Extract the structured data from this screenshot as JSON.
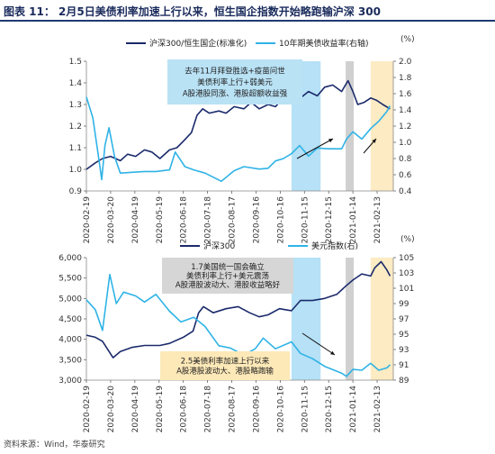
{
  "figure": {
    "title": "图表 11：  2月5日美债利率加速上行以来，恒生国企指数开始略跑输沪深 300",
    "source": "资料来源：Wind，华泰研究"
  },
  "colors": {
    "navy": "#1b2a6b",
    "cyan": "#2fb3e6",
    "cyan_band": "#a9dcf4",
    "grey_band": "#c8c8c8",
    "yellow_band": "#fbe8b8",
    "annot_blue_bg": "#b9e2f5",
    "annot_grey_bg": "#d6d6d6",
    "annot_yellow_bg": "#fde9b8"
  },
  "chart_data": [
    {
      "type": "line",
      "title": "",
      "x_ticks": [
        "2020-02-19",
        "2020-03-20",
        "2020-04-19",
        "2020-05-19",
        "2020-06-18",
        "2020-07-18",
        "2020-08-17",
        "2020-09-16",
        "2020-10-16",
        "2020-11-15",
        "2020-12-15",
        "2021-01-14",
        "2021-02-13"
      ],
      "x_range": [
        "2020-02-19",
        "2021-03-05"
      ],
      "y_left": {
        "range": [
          0.9,
          1.5
        ],
        "ticks": [
          "0.9",
          "1.0",
          "1.1",
          "1.2",
          "1.3",
          "1.4",
          "1.5"
        ]
      },
      "y_right": {
        "range": [
          0.4,
          2.0
        ],
        "ticks": [
          "0.4",
          "0.6",
          "0.8",
          "1.0",
          "1.2",
          "1.4",
          "1.6",
          "1.8",
          "2.0"
        ],
        "unit": "(%)"
      },
      "legend": {
        "placement": "top",
        "entries": [
          "沪深300/恒生国企(标准化)",
          "10年期美债收益率(右轴)"
        ]
      },
      "bands": [
        {
          "from": "2020-10-30",
          "to": "2020-12-05",
          "color": "cyan"
        },
        {
          "from": "2021-01-05",
          "to": "2021-01-15",
          "color": "grey"
        },
        {
          "from": "2021-02-05",
          "to": "2021-03-05",
          "color": "yellow"
        }
      ],
      "annotations": [
        {
          "lines": [
            "去年11月拜登胜选+疫苗问世",
            "美债利率上行+弱美元",
            "A股港股同涨、港股超额收益强"
          ],
          "style": "blue"
        }
      ],
      "series": [
        {
          "name": "沪深300/恒生国企(标准化)",
          "axis": "left",
          "color": "navy",
          "x": [
            "2020-02-19",
            "2020-03-01",
            "2020-03-10",
            "2020-03-20",
            "2020-04-01",
            "2020-04-10",
            "2020-04-20",
            "2020-05-01",
            "2020-05-10",
            "2020-05-20",
            "2020-06-01",
            "2020-06-10",
            "2020-06-18",
            "2020-06-28",
            "2020-07-05",
            "2020-07-12",
            "2020-07-20",
            "2020-08-01",
            "2020-08-10",
            "2020-08-20",
            "2020-09-01",
            "2020-09-10",
            "2020-09-20",
            "2020-10-01",
            "2020-10-10",
            "2020-10-20",
            "2020-10-30",
            "2020-11-10",
            "2020-11-20",
            "2020-12-01",
            "2020-12-10",
            "2020-12-20",
            "2020-12-31",
            "2021-01-08",
            "2021-01-14",
            "2021-01-20",
            "2021-01-28",
            "2021-02-05",
            "2021-02-12",
            "2021-02-20",
            "2021-03-01"
          ],
          "values": [
            1.0,
            1.03,
            1.05,
            1.06,
            1.04,
            1.07,
            1.06,
            1.09,
            1.08,
            1.05,
            1.09,
            1.1,
            1.13,
            1.17,
            1.25,
            1.28,
            1.26,
            1.27,
            1.26,
            1.29,
            1.28,
            1.31,
            1.28,
            1.3,
            1.29,
            1.33,
            1.34,
            1.33,
            1.36,
            1.34,
            1.38,
            1.39,
            1.36,
            1.41,
            1.36,
            1.3,
            1.31,
            1.33,
            1.32,
            1.3,
            1.28
          ]
        },
        {
          "name": "10年期美债收益率(右轴)",
          "axis": "right",
          "color": "cyan",
          "x": [
            "2020-02-19",
            "2020-02-27",
            "2020-03-06",
            "2020-03-09",
            "2020-03-13",
            "2020-03-18",
            "2020-03-25",
            "2020-04-01",
            "2020-04-15",
            "2020-05-01",
            "2020-05-15",
            "2020-06-01",
            "2020-06-08",
            "2020-06-20",
            "2020-07-01",
            "2020-07-15",
            "2020-08-04",
            "2020-08-20",
            "2020-09-01",
            "2020-09-20",
            "2020-10-01",
            "2020-10-10",
            "2020-10-20",
            "2020-10-30",
            "2020-11-09",
            "2020-11-20",
            "2020-12-01",
            "2020-12-15",
            "2020-12-31",
            "2021-01-06",
            "2021-01-14",
            "2021-01-25",
            "2021-02-05",
            "2021-02-15",
            "2021-02-25",
            "2021-03-01"
          ],
          "values": [
            1.56,
            1.3,
            0.75,
            0.54,
            0.96,
            1.18,
            0.82,
            0.62,
            0.63,
            0.64,
            0.64,
            0.66,
            0.88,
            0.7,
            0.66,
            0.62,
            0.52,
            0.65,
            0.7,
            0.67,
            0.68,
            0.77,
            0.8,
            0.86,
            0.96,
            0.83,
            0.93,
            0.92,
            0.92,
            1.04,
            1.13,
            1.04,
            1.17,
            1.26,
            1.38,
            1.45
          ]
        }
      ]
    },
    {
      "type": "line",
      "title": "",
      "x_ticks": [
        "2020-02-19",
        "2020-03-20",
        "2020-04-19",
        "2020-05-19",
        "2020-06-18",
        "2020-07-18",
        "2020-08-17",
        "2020-09-16",
        "2020-10-16",
        "2020-11-15",
        "2020-12-15",
        "2021-01-14",
        "2021-02-13"
      ],
      "x_range": [
        "2020-02-19",
        "2021-03-05"
      ],
      "y_left": {
        "range": [
          3000,
          6000
        ],
        "ticks": [
          "3,000",
          "3,500",
          "4,000",
          "4,500",
          "5,000",
          "5,500",
          "6,000"
        ]
      },
      "y_right": {
        "range": [
          89,
          105
        ],
        "ticks": [
          "89",
          "91",
          "93",
          "95",
          "97",
          "99",
          "101",
          "103",
          "105"
        ],
        "unit": "(%)"
      },
      "legend": {
        "placement": "top",
        "entries": [
          "沪深300",
          "美元指数(右)"
        ]
      },
      "bands": [
        {
          "from": "2020-10-30",
          "to": "2020-12-05",
          "color": "cyan"
        },
        {
          "from": "2021-01-05",
          "to": "2021-01-15",
          "color": "grey"
        },
        {
          "from": "2021-02-05",
          "to": "2021-03-05",
          "color": "yellow"
        }
      ],
      "annotations": [
        {
          "lines": [
            "1.7美国统一国会确立",
            "美债利率上行+美元震荡",
            "A股港股波动大、港股收益略好"
          ],
          "style": "grey"
        },
        {
          "lines": [
            "2.5美债利率加速上行以来",
            "A股港股波动大、港股略跑输"
          ],
          "style": "yellow"
        }
      ],
      "series": [
        {
          "name": "沪深300",
          "axis": "left",
          "color": "navy",
          "x": [
            "2020-02-19",
            "2020-03-01",
            "2020-03-10",
            "2020-03-23",
            "2020-04-01",
            "2020-04-15",
            "2020-05-01",
            "2020-05-20",
            "2020-06-01",
            "2020-06-18",
            "2020-06-30",
            "2020-07-07",
            "2020-07-13",
            "2020-07-25",
            "2020-08-10",
            "2020-08-25",
            "2020-09-08",
            "2020-09-20",
            "2020-10-01",
            "2020-10-15",
            "2020-10-30",
            "2020-11-10",
            "2020-11-25",
            "2020-12-10",
            "2020-12-25",
            "2021-01-05",
            "2021-01-14",
            "2021-01-25",
            "2021-02-05",
            "2021-02-10",
            "2021-02-18",
            "2021-02-25",
            "2021-03-01"
          ],
          "values": [
            4100,
            4050,
            3950,
            3550,
            3700,
            3800,
            3850,
            3850,
            3900,
            4050,
            4200,
            4650,
            4800,
            4650,
            4750,
            4800,
            4650,
            4550,
            4600,
            4750,
            4700,
            4950,
            4950,
            5000,
            5100,
            5300,
            5450,
            5600,
            5550,
            5750,
            5900,
            5700,
            5550
          ]
        },
        {
          "name": "美元指数(右)",
          "axis": "right",
          "color": "cyan",
          "x": [
            "2020-02-19",
            "2020-03-01",
            "2020-03-10",
            "2020-03-19",
            "2020-03-27",
            "2020-04-05",
            "2020-04-20",
            "2020-05-01",
            "2020-05-15",
            "2020-06-01",
            "2020-06-15",
            "2020-07-01",
            "2020-07-15",
            "2020-08-01",
            "2020-08-15",
            "2020-09-01",
            "2020-09-15",
            "2020-09-25",
            "2020-10-10",
            "2020-10-30",
            "2020-11-10",
            "2020-11-25",
            "2020-12-10",
            "2020-12-31",
            "2021-01-06",
            "2021-01-14",
            "2021-01-25",
            "2021-02-05",
            "2021-02-15",
            "2021-02-25",
            "2021-03-01"
          ],
          "values": [
            99.5,
            98.2,
            95.5,
            102.8,
            99.0,
            100.5,
            100.0,
            99.2,
            100.2,
            98.0,
            96.6,
            97.2,
            96.0,
            93.5,
            93.2,
            92.3,
            93.1,
            94.5,
            93.1,
            94.0,
            92.5,
            91.8,
            90.8,
            89.9,
            89.5,
            90.4,
            90.3,
            91.2,
            90.3,
            90.6,
            91.0
          ]
        }
      ]
    }
  ]
}
